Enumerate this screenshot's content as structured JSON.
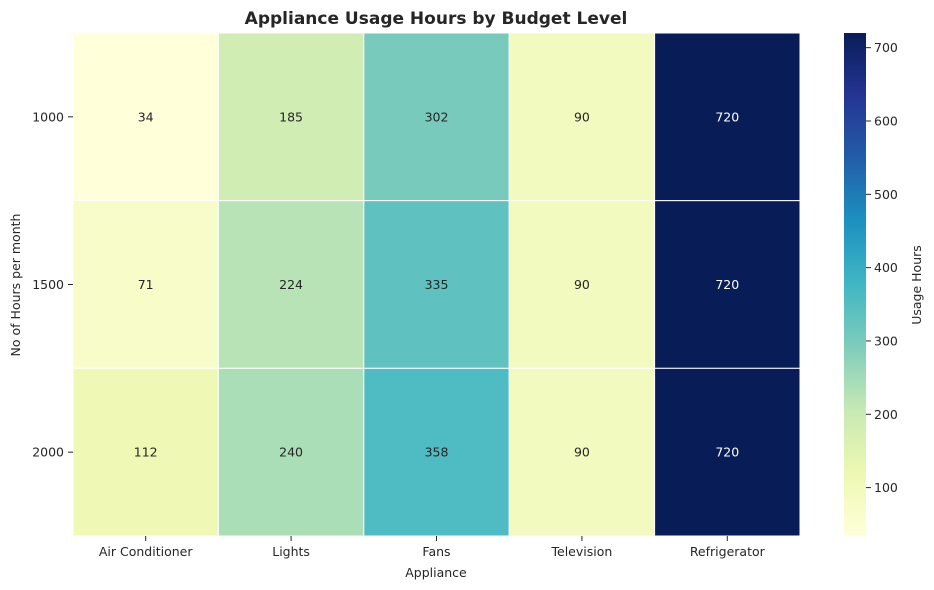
{
  "chart_data": {
    "type": "heatmap",
    "title": "Appliance Usage Hours by Budget Level",
    "xlabel": "Appliance",
    "ylabel": "No of Hours per month",
    "x_categories": [
      "Air Conditioner",
      "Lights",
      "Fans",
      "Television",
      "Refrigerator"
    ],
    "y_categories": [
      "1000",
      "1500",
      "2000"
    ],
    "values": [
      [
        34,
        185,
        302,
        90,
        720
      ],
      [
        71,
        224,
        335,
        90,
        720
      ],
      [
        112,
        240,
        358,
        90,
        720
      ]
    ],
    "annotations": true,
    "colormap": "YlGnBu",
    "colorbar": {
      "label": "Usage Hours",
      "range": [
        34,
        720
      ],
      "ticks": [
        100,
        200,
        300,
        400,
        500,
        600,
        700
      ]
    },
    "grid": false
  }
}
